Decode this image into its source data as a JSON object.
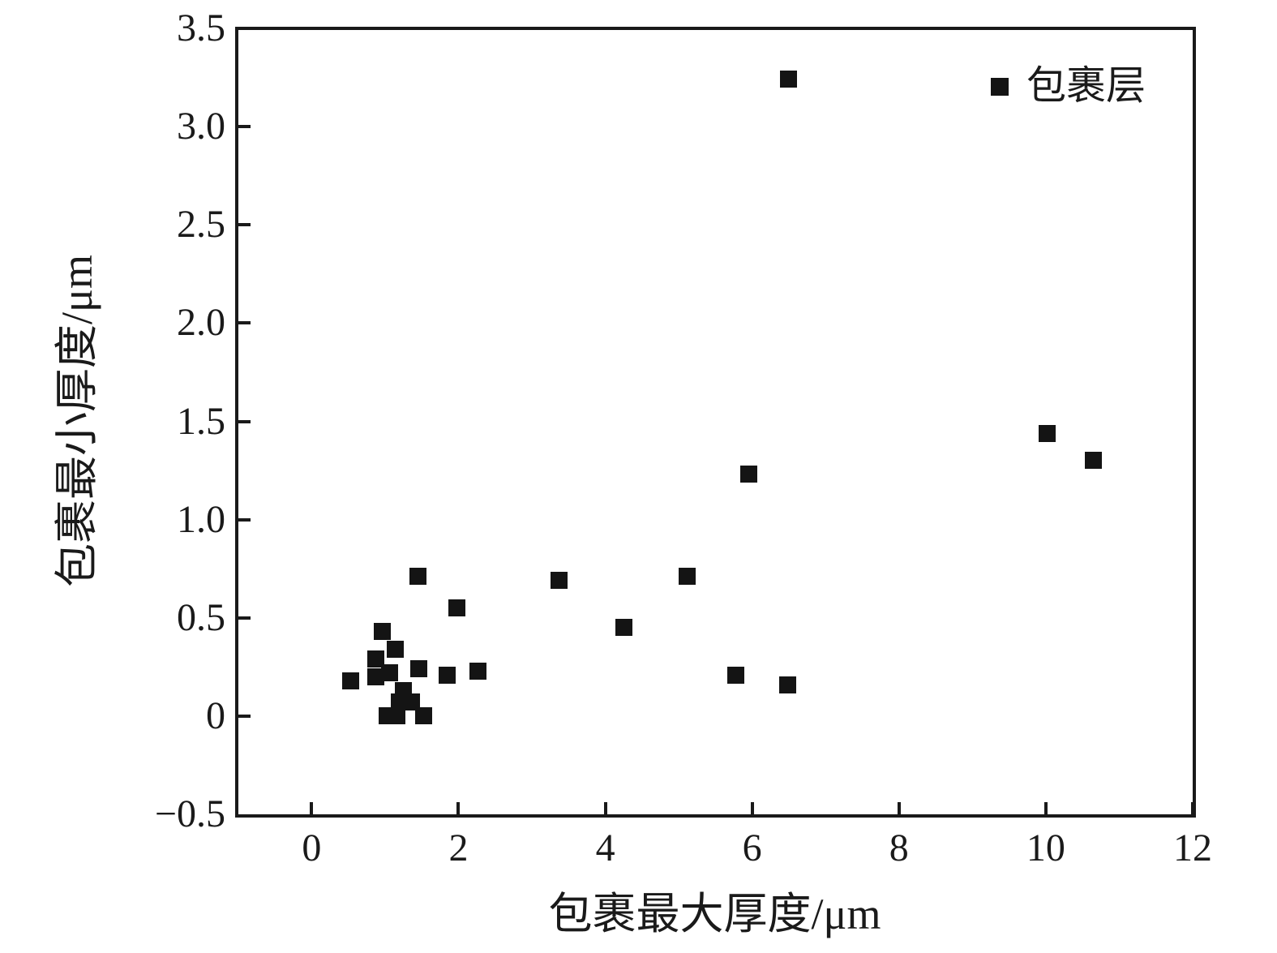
{
  "chart_data": {
    "type": "scatter",
    "title": "",
    "xlabel": "包裹最大厚度/μm",
    "ylabel": "包裹最小厚度/μm",
    "xlim": [
      -1.02,
      12
    ],
    "ylim": [
      -0.5,
      3.5
    ],
    "grid": false,
    "legend_position": "top-right",
    "x_ticks": [
      0,
      2,
      4,
      6,
      8,
      10,
      12
    ],
    "x_tick_labels": [
      "0",
      "2",
      "4",
      "6",
      "8",
      "10",
      "12"
    ],
    "y_ticks": [
      -0.5,
      0,
      0.5,
      1.0,
      1.5,
      2.0,
      2.5,
      3.0,
      3.5
    ],
    "y_tick_labels": [
      "−0.5",
      "0",
      "0.5",
      "1.0",
      "1.5",
      "2.0",
      "2.5",
      "3.0",
      "3.5"
    ],
    "series": [
      {
        "name": "包裹层",
        "marker": "square",
        "color": "#141414",
        "points": [
          [
            0.53,
            0.18
          ],
          [
            0.87,
            0.29
          ],
          [
            0.87,
            0.2
          ],
          [
            0.96,
            0.43
          ],
          [
            1.03,
            0.0
          ],
          [
            1.06,
            0.22
          ],
          [
            1.14,
            0.34
          ],
          [
            1.16,
            0.0
          ],
          [
            1.19,
            0.07
          ],
          [
            1.25,
            0.13
          ],
          [
            1.36,
            0.07
          ],
          [
            1.45,
            0.71
          ],
          [
            1.46,
            0.24
          ],
          [
            1.53,
            0.0
          ],
          [
            1.85,
            0.21
          ],
          [
            1.98,
            0.55
          ],
          [
            2.27,
            0.23
          ],
          [
            3.37,
            0.69
          ],
          [
            4.25,
            0.45
          ],
          [
            5.12,
            0.71
          ],
          [
            5.78,
            0.21
          ],
          [
            5.95,
            1.23
          ],
          [
            6.48,
            0.16
          ],
          [
            6.5,
            3.24
          ],
          [
            10.02,
            1.44
          ],
          [
            10.65,
            1.3
          ]
        ]
      }
    ]
  }
}
